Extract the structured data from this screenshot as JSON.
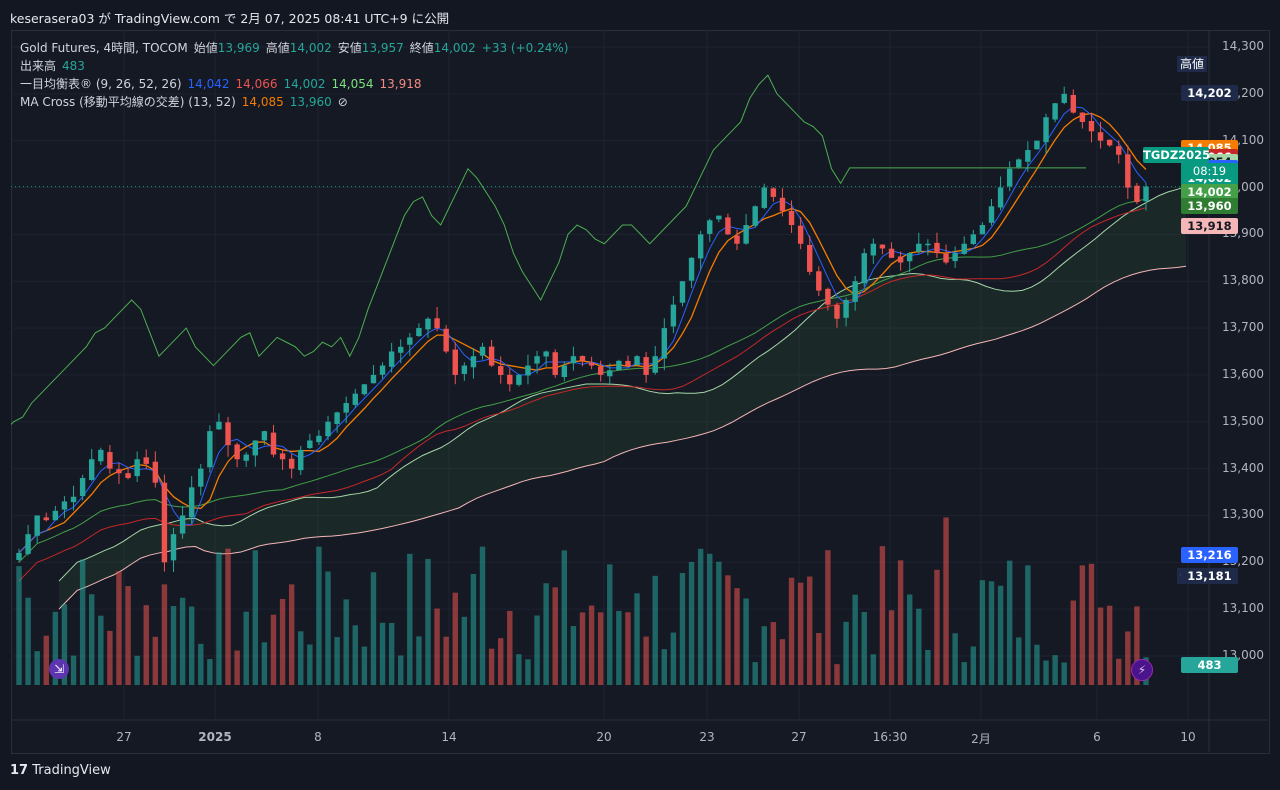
{
  "caption": "keserasera03 が TradingView.com で 2月 07, 2025 08:41 UTC+9 に公開",
  "brand": "TradingView",
  "legend": {
    "symbol": "Gold Futures, 4時間, TOCOM",
    "open_label": "始値",
    "open": "13,969",
    "high_label": "高値",
    "high": "14,002",
    "low_label": "安値",
    "low": "13,957",
    "close_label": "終値",
    "close": "14,002",
    "change": "+33 (+0.24%)",
    "volume_label": "出来高",
    "volume": "483",
    "ichimoku_label": "一目均衡表® (9, 26, 52, 26)",
    "ichimoku_vals": [
      "14,042",
      "14,066",
      "14,002",
      "14,054",
      "13,918"
    ],
    "ma_label": "MA Cross (移動平均線の交差) (13, 52)",
    "ma_vals": [
      "14,085",
      "13,960"
    ],
    "ma_icon": "⊘"
  },
  "price_labels": {
    "high_tag": "高値",
    "high_value": "14,202",
    "low_tag": "安値",
    "low_value": "13,181",
    "symbol_tag": "TGDZ2025",
    "countdown": "08:19",
    "alt_value": "13,216"
  },
  "boxes": [
    {
      "text": "14,202",
      "color": "#1e2a48",
      "price": 14202
    },
    {
      "text": "14,085",
      "color": "#f57c00",
      "price": 14085
    },
    {
      "text": "14,066",
      "color": "#c62828",
      "price": 14066
    },
    {
      "text": "14,054",
      "color": "#a5d6a7",
      "price": 14054
    },
    {
      "text": "14,042",
      "color": "#2962ff",
      "price": 14042
    },
    {
      "text": "14,002",
      "color": "#089981",
      "price": 14020
    },
    {
      "text": "14,002",
      "color": "#43a047",
      "price": 13990
    },
    {
      "text": "13,960",
      "color": "#2e7d32",
      "price": 13960
    },
    {
      "text": "13,918",
      "color": "#f4b6b6",
      "price": 13918
    },
    {
      "text": "13,216",
      "color": "#2962ff",
      "price": 13216
    },
    {
      "text": "483",
      "color": "#26a69a",
      "price": 12980
    }
  ],
  "yaxis": [
    "14,300",
    "14,200",
    "14,100",
    "14,000",
    "13,900",
    "13,800",
    "13,700",
    "13,600",
    "13,500",
    "13,400",
    "13,300",
    "13,200",
    "13,100",
    "13,000"
  ],
  "xaxis": [
    {
      "label": "27",
      "x": 124
    },
    {
      "label": "2025",
      "x": 215
    },
    {
      "label": "8",
      "x": 318
    },
    {
      "label": "14",
      "x": 449
    },
    {
      "label": "20",
      "x": 604
    },
    {
      "label": "23",
      "x": 707
    },
    {
      "label": "27",
      "x": 799
    },
    {
      "label": "16:30",
      "x": 890
    },
    {
      "label": "2月",
      "x": 981
    },
    {
      "label": "6",
      "x": 1097
    },
    {
      "label": "10",
      "x": 1188
    }
  ],
  "chart_data": {
    "type": "candlestick",
    "title": "Gold Futures, 4時間, TOCOM",
    "ylim": [
      12950,
      14330
    ],
    "close_series": [
      13220,
      13260,
      13300,
      13290,
      13310,
      13330,
      13340,
      13380,
      13420,
      13440,
      13400,
      13390,
      13380,
      13420,
      13410,
      13370,
      13200,
      13260,
      13300,
      13360,
      13400,
      13480,
      13500,
      13450,
      13420,
      13430,
      13460,
      13480,
      13430,
      13420,
      13400,
      13440,
      13460,
      13470,
      13500,
      13520,
      13540,
      13560,
      13580,
      13600,
      13620,
      13650,
      13660,
      13680,
      13700,
      13720,
      13700,
      13650,
      13600,
      13620,
      13640,
      13660,
      13620,
      13600,
      13580,
      13600,
      13620,
      13640,
      13650,
      13600,
      13620,
      13640,
      13630,
      13620,
      13600,
      13610,
      13630,
      13620,
      13640,
      13600,
      13640,
      13700,
      13750,
      13800,
      13850,
      13900,
      13930,
      13940,
      13900,
      13880,
      13920,
      13960,
      14000,
      13980,
      13950,
      13920,
      13880,
      13820,
      13780,
      13750,
      13720,
      13760,
      13800,
      13860,
      13880,
      13870,
      13850,
      13840,
      13860,
      13880,
      13880,
      13860,
      13840,
      13860,
      13880,
      13900,
      13920,
      13960,
      14000,
      14040,
      14060,
      14080,
      14100,
      14150,
      14180,
      14200,
      14160,
      14140,
      14120,
      14100,
      14090,
      14070,
      14000,
      13969,
      14002
    ],
    "volume_max": 300,
    "indicators": {
      "tenkan": "14,042",
      "kijun": "14,066",
      "chikou": "14,002",
      "senkou_a": "14,054",
      "senkou_b": "13,918",
      "ma13": "14,085",
      "ma52": "13,960"
    }
  }
}
